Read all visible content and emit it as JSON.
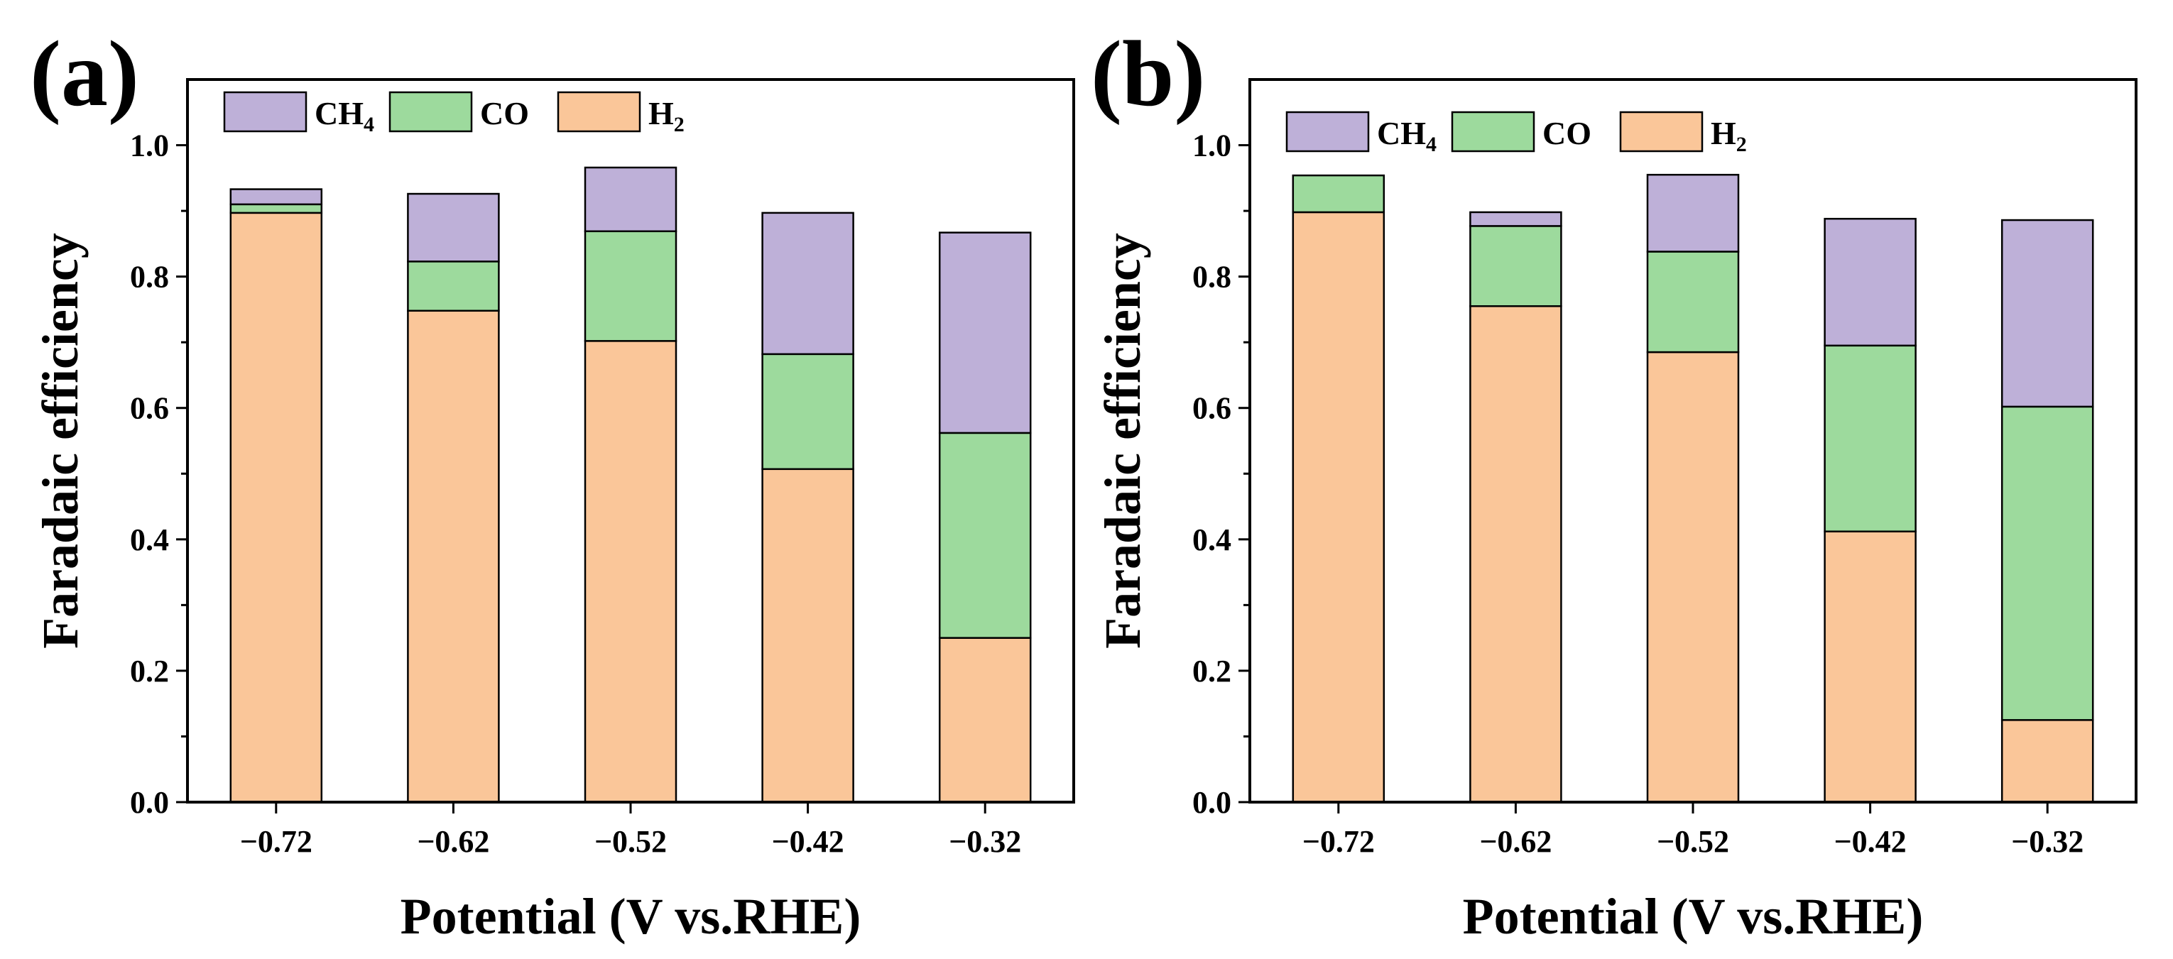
{
  "chart_data": [
    {
      "type": "bar",
      "stacked": true,
      "panel_label": "(a)",
      "categories": [
        "−0.72",
        "−0.62",
        "−0.52",
        "−0.42",
        "−0.32"
      ],
      "series": [
        {
          "name": "H2",
          "label_main": "H",
          "label_sub": "2",
          "color": "#FAC699",
          "values": [
            0.897,
            0.748,
            0.702,
            0.507,
            0.25
          ]
        },
        {
          "name": "CO",
          "label_main": "CO",
          "label_sub": "",
          "color": "#9DDA9D",
          "values": [
            0.013,
            0.075,
            0.167,
            0.175,
            0.312
          ]
        },
        {
          "name": "CH4",
          "label_main": "CH",
          "label_sub": "4",
          "color": "#BEB0D8",
          "values": [
            0.023,
            0.103,
            0.097,
            0.215,
            0.305
          ]
        }
      ],
      "xlabel": "Potential (V vs.RHE)",
      "ylabel": "Faradaic efficiency",
      "ylim": [
        0,
        1.1
      ],
      "yticks": [
        "0.0",
        "0.2",
        "0.4",
        "0.6",
        "0.8",
        "1.0"
      ],
      "legend_position": "top-left"
    },
    {
      "type": "bar",
      "stacked": true,
      "panel_label": "(b)",
      "categories": [
        "−0.72",
        "−0.62",
        "−0.52",
        "−0.42",
        "−0.32"
      ],
      "series": [
        {
          "name": "H2",
          "label_main": "H",
          "label_sub": "2",
          "color": "#FAC699",
          "values": [
            0.898,
            0.755,
            0.685,
            0.412,
            0.125
          ]
        },
        {
          "name": "CO",
          "label_main": "CO",
          "label_sub": "",
          "color": "#9DDA9D",
          "values": [
            0.056,
            0.122,
            0.153,
            0.283,
            0.477
          ]
        },
        {
          "name": "CH4",
          "label_main": "CH",
          "label_sub": "4",
          "color": "#BEB0D8",
          "values": [
            0.0,
            0.021,
            0.117,
            0.193,
            0.284
          ]
        }
      ],
      "xlabel": "Potential (V vs.RHE)",
      "ylabel": "Faradaic efficiency",
      "ylim": [
        0,
        1.1
      ],
      "yticks": [
        "0.0",
        "0.2",
        "0.4",
        "0.6",
        "0.8",
        "1.0"
      ],
      "legend_position": "top-left"
    }
  ]
}
